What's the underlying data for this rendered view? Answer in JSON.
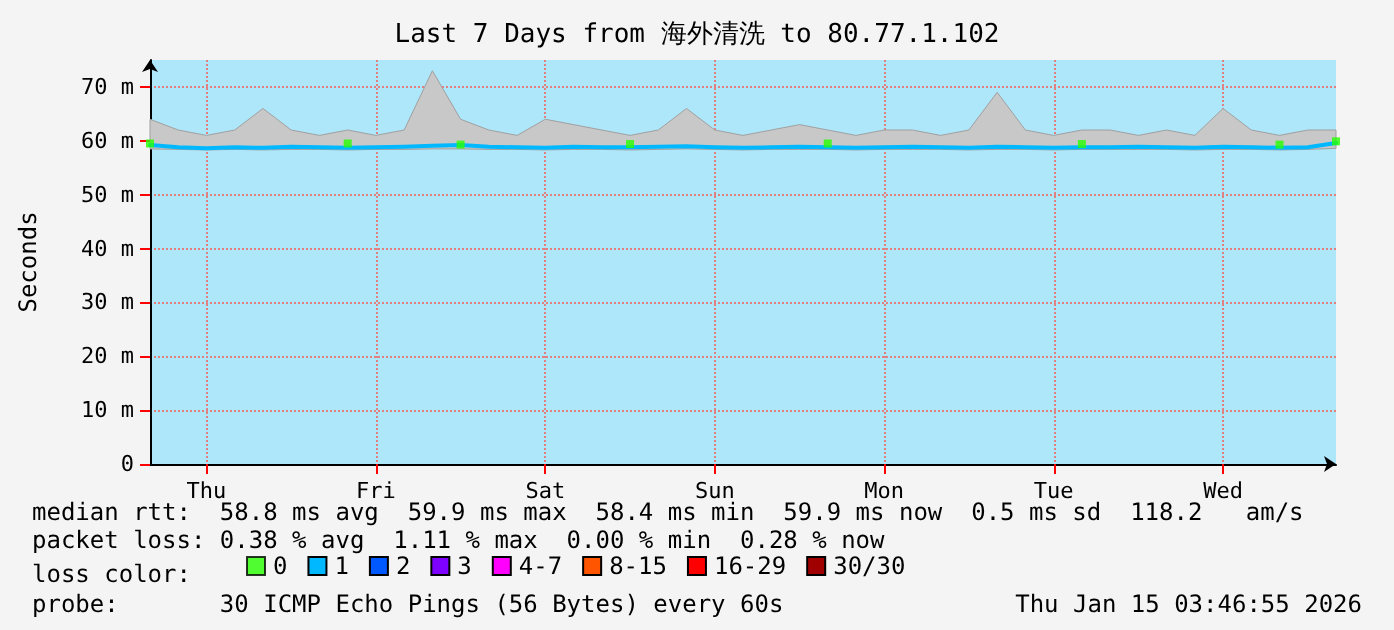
{
  "chart_data": {
    "type": "line",
    "title": "Last 7 Days from 海外清洗 to 80.77.1.102",
    "ylabel": "Seconds",
    "legend_title": "loss color:",
    "legend": "bottom left",
    "categories": [
      null,
      null,
      "Thu",
      null,
      null,
      null,
      null,
      null,
      "Fri",
      null,
      null,
      null,
      null,
      null,
      "Sat",
      null,
      null,
      null,
      null,
      null,
      "Sun",
      null,
      null,
      null,
      null,
      null,
      "Mon",
      null,
      null,
      null,
      null,
      null,
      "Tue",
      null,
      null,
      null,
      null,
      null,
      "Wed",
      null,
      null,
      null,
      null
    ],
    "ylim": [
      0,
      75
    ],
    "yticks": [
      0,
      {
        "value": 10,
        "label": "10 m"
      },
      {
        "value": 20,
        "label": "20 m"
      },
      {
        "value": 30,
        "label": "30 m"
      },
      {
        "value": 40,
        "label": "40 m"
      },
      {
        "value": 50,
        "label": "50 m"
      },
      {
        "value": 60,
        "label": "60 m"
      },
      {
        "value": 70,
        "label": "70 m"
      }
    ],
    "grid": true,
    "series": [
      {
        "name": "0",
        "color": "#26ff00",
        "type": "scatter",
        "values": [
          59.5,
          null,
          null,
          null,
          null,
          null,
          null,
          59.5,
          null,
          null,
          null,
          59.3,
          null,
          null,
          null,
          null,
          null,
          59.4,
          null,
          null,
          null,
          null,
          null,
          null,
          59.5,
          null,
          null,
          null,
          null,
          null,
          null,
          null,
          null,
          59.4,
          null,
          null,
          null,
          null,
          null,
          null,
          59.3,
          null,
          59.9
        ]
      },
      {
        "name": "1",
        "color": "#00b8ff",
        "values": [
          59.2,
          58.8,
          58.6,
          58.8,
          58.7,
          58.9,
          58.8,
          58.7,
          58.8,
          58.9,
          59.1,
          59.2,
          58.9,
          58.8,
          58.7,
          58.9,
          58.8,
          58.8,
          58.9,
          59.0,
          58.8,
          58.7,
          58.8,
          58.9,
          58.8,
          58.7,
          58.8,
          58.9,
          58.8,
          58.7,
          58.9,
          58.8,
          58.7,
          58.8,
          58.8,
          58.9,
          58.8,
          58.7,
          58.9,
          58.8,
          58.7,
          58.8,
          59.6
        ],
        "lower": [
          58.5,
          58.4,
          58.3,
          58.4,
          58.3,
          58.4,
          58.4,
          58.3,
          58.4,
          58.4,
          58.5,
          58.5,
          58.4,
          58.4,
          58.3,
          58.4,
          58.4,
          58.3,
          58.4,
          58.5,
          58.4,
          58.3,
          58.4,
          58.4,
          58.4,
          58.3,
          58.4,
          58.4,
          58.4,
          58.3,
          58.4,
          58.4,
          58.3,
          58.4,
          58.4,
          58.4,
          58.4,
          58.3,
          58.4,
          58.4,
          58.3,
          58.4,
          58.6
        ],
        "upper": [
          64,
          62,
          61,
          62,
          66,
          62,
          61,
          62,
          61,
          62,
          73,
          64,
          62,
          61,
          64,
          63,
          62,
          61,
          62,
          66,
          62,
          61,
          62,
          63,
          62,
          61,
          62,
          62,
          61,
          62,
          69,
          62,
          61,
          62,
          62,
          61,
          62,
          61,
          66,
          62,
          61,
          62,
          62
        ]
      },
      {
        "name": "2",
        "color": "#0059ff",
        "values": [
          null,
          null,
          null,
          null,
          null,
          null,
          null,
          null,
          null,
          null,
          null,
          null,
          null,
          null,
          null,
          null,
          null,
          null,
          null,
          null,
          null,
          null,
          null,
          null,
          null,
          null,
          null,
          null,
          null,
          null,
          null,
          null,
          null,
          null,
          null,
          null,
          null,
          null,
          null,
          null,
          null,
          null,
          null
        ]
      },
      {
        "name": "3",
        "color": "#7e00ff",
        "values": [
          null,
          null,
          null,
          null,
          null,
          null,
          null,
          null,
          null,
          null,
          null,
          null,
          null,
          null,
          null,
          null,
          null,
          null,
          null,
          null,
          null,
          null,
          null,
          null,
          null,
          null,
          null,
          null,
          null,
          null,
          null,
          null,
          null,
          null,
          null,
          null,
          null,
          null,
          null,
          null,
          null,
          null,
          null
        ]
      },
      {
        "name": "4-7",
        "color": "#ff00ff",
        "values": [
          null,
          null,
          null,
          null,
          null,
          null,
          null,
          null,
          null,
          null,
          null,
          null,
          null,
          null,
          null,
          null,
          null,
          null,
          null,
          null,
          null,
          null,
          null,
          null,
          null,
          null,
          null,
          null,
          null,
          null,
          null,
          null,
          null,
          null,
          null,
          null,
          null,
          null,
          null,
          null,
          null,
          null,
          null
        ]
      },
      {
        "name": "8-15",
        "color": "#ff5500",
        "values": [
          null,
          null,
          null,
          null,
          null,
          null,
          null,
          null,
          null,
          null,
          null,
          null,
          null,
          null,
          null,
          null,
          null,
          null,
          null,
          null,
          null,
          null,
          null,
          null,
          null,
          null,
          null,
          null,
          null,
          null,
          null,
          null,
          null,
          null,
          null,
          null,
          null,
          null,
          null,
          null,
          null,
          null,
          null
        ]
      },
      {
        "name": "16-29",
        "color": "#ff0000",
        "values": [
          null,
          null,
          null,
          null,
          null,
          null,
          null,
          null,
          null,
          null,
          null,
          null,
          null,
          null,
          null,
          null,
          null,
          null,
          null,
          null,
          null,
          null,
          null,
          null,
          null,
          null,
          null,
          null,
          null,
          null,
          null,
          null,
          null,
          null,
          null,
          null,
          null,
          null,
          null,
          null,
          null,
          null,
          null
        ]
      },
      {
        "name": "30/30",
        "color": "#a10000",
        "values": [
          null,
          null,
          null,
          null,
          null,
          null,
          null,
          null,
          null,
          null,
          null,
          null,
          null,
          null,
          null,
          null,
          null,
          null,
          null,
          null,
          null,
          null,
          null,
          null,
          null,
          null,
          null,
          null,
          null,
          null,
          null,
          null,
          null,
          null,
          null,
          null,
          null,
          null,
          null,
          null,
          null,
          null,
          null
        ]
      }
    ],
    "annotations": [
      "median rtt:  58.8 ms avg  59.9 ms max  58.4 ms min  59.9 ms now  0.5 ms sd  118.2   am/s",
      "packet loss: 0.38 % avg  1.11 % max  0.00 % min  0.28 % now",
      "probe:       30 ICMP Echo Pings (56 Bytes) every 60s",
      "Thu Jan 15 03:46:55 2026"
    ]
  }
}
